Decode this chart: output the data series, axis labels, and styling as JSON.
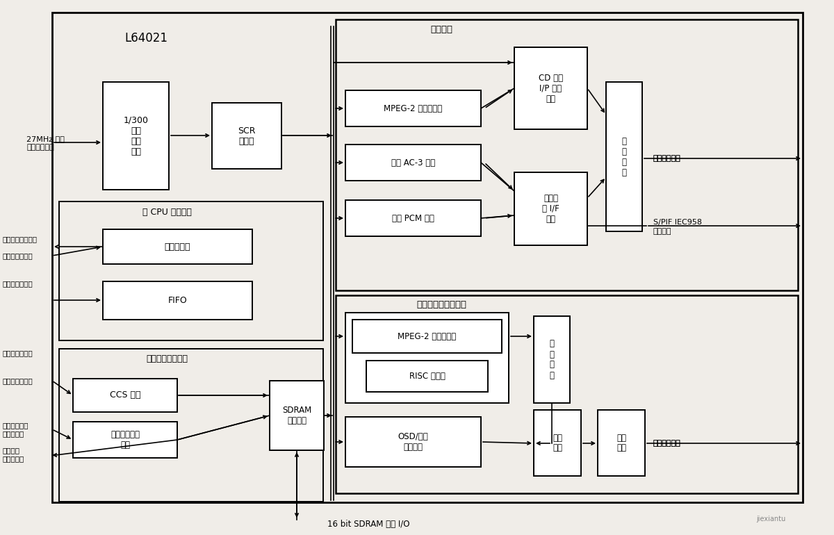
{
  "bg": "#f0ede8",
  "lc": "#000000",
  "title_l64021": "L64021",
  "title_audio": "音频解码",
  "title_cpu": "主 CPU 接口电路",
  "title_video": "视频解码及播放控制",
  "title_data": "数据通道接口电路",
  "lbl_27mhz_1": "27MHz 系统",
  "lbl_27mhz_2": "时钟信号输入",
  "lbl_int_out": "中断控制信号输出",
  "lbl_ctrl": "控制信号输入端",
  "lbl_data": "数据信号输入端",
  "lbl_addr": "地址信号输入端",
  "lbl_stream": "节目流信号输入",
  "lbl_mux1": "数据选通控制",
  "lbl_mux2": "信号输入端",
  "lbl_dreq1": "数据请求",
  "lbl_dreq2": "信号输出端",
  "lbl_sdram_io": "16 bit SDRAM 数据 I/O",
  "lbl_audio_out": "音频信号输出",
  "lbl_spif1": "S/PIF IEC958",
  "lbl_spif2": "信号输出",
  "lbl_video_out": "视频信号输出",
  "box_div": "1/300\n时钟\n分频\n电路",
  "box_scr": "SCR\n计数器",
  "box_int": "中断发生器",
  "box_fifo": "FIFO",
  "box_ccs": "CCS 单元",
  "box_prog": "可编程解码器\n电路",
  "box_sdram": "SDRAM\n接口电路",
  "box_mpeg2a": "MPEG-2 音频解码器",
  "box_dolby": "杜比 AC-3 处理",
  "box_pcm": "线性 PCM 处理",
  "box_cd": "CD 直通\nI/P 变换\n处理",
  "box_serial": "串行输\n出 I/F\n变换",
  "box_mix_a": "混\n合\n处\n理",
  "box_mpeg2v": "MPEG-2 视频解码器",
  "box_risc": "RISC 处理器",
  "box_filter": "滤\n波\n电\n路",
  "box_osd": "OSD/图形\n信号处理",
  "box_mix_v": "混合\n处理",
  "box_play": "播放\n控制"
}
